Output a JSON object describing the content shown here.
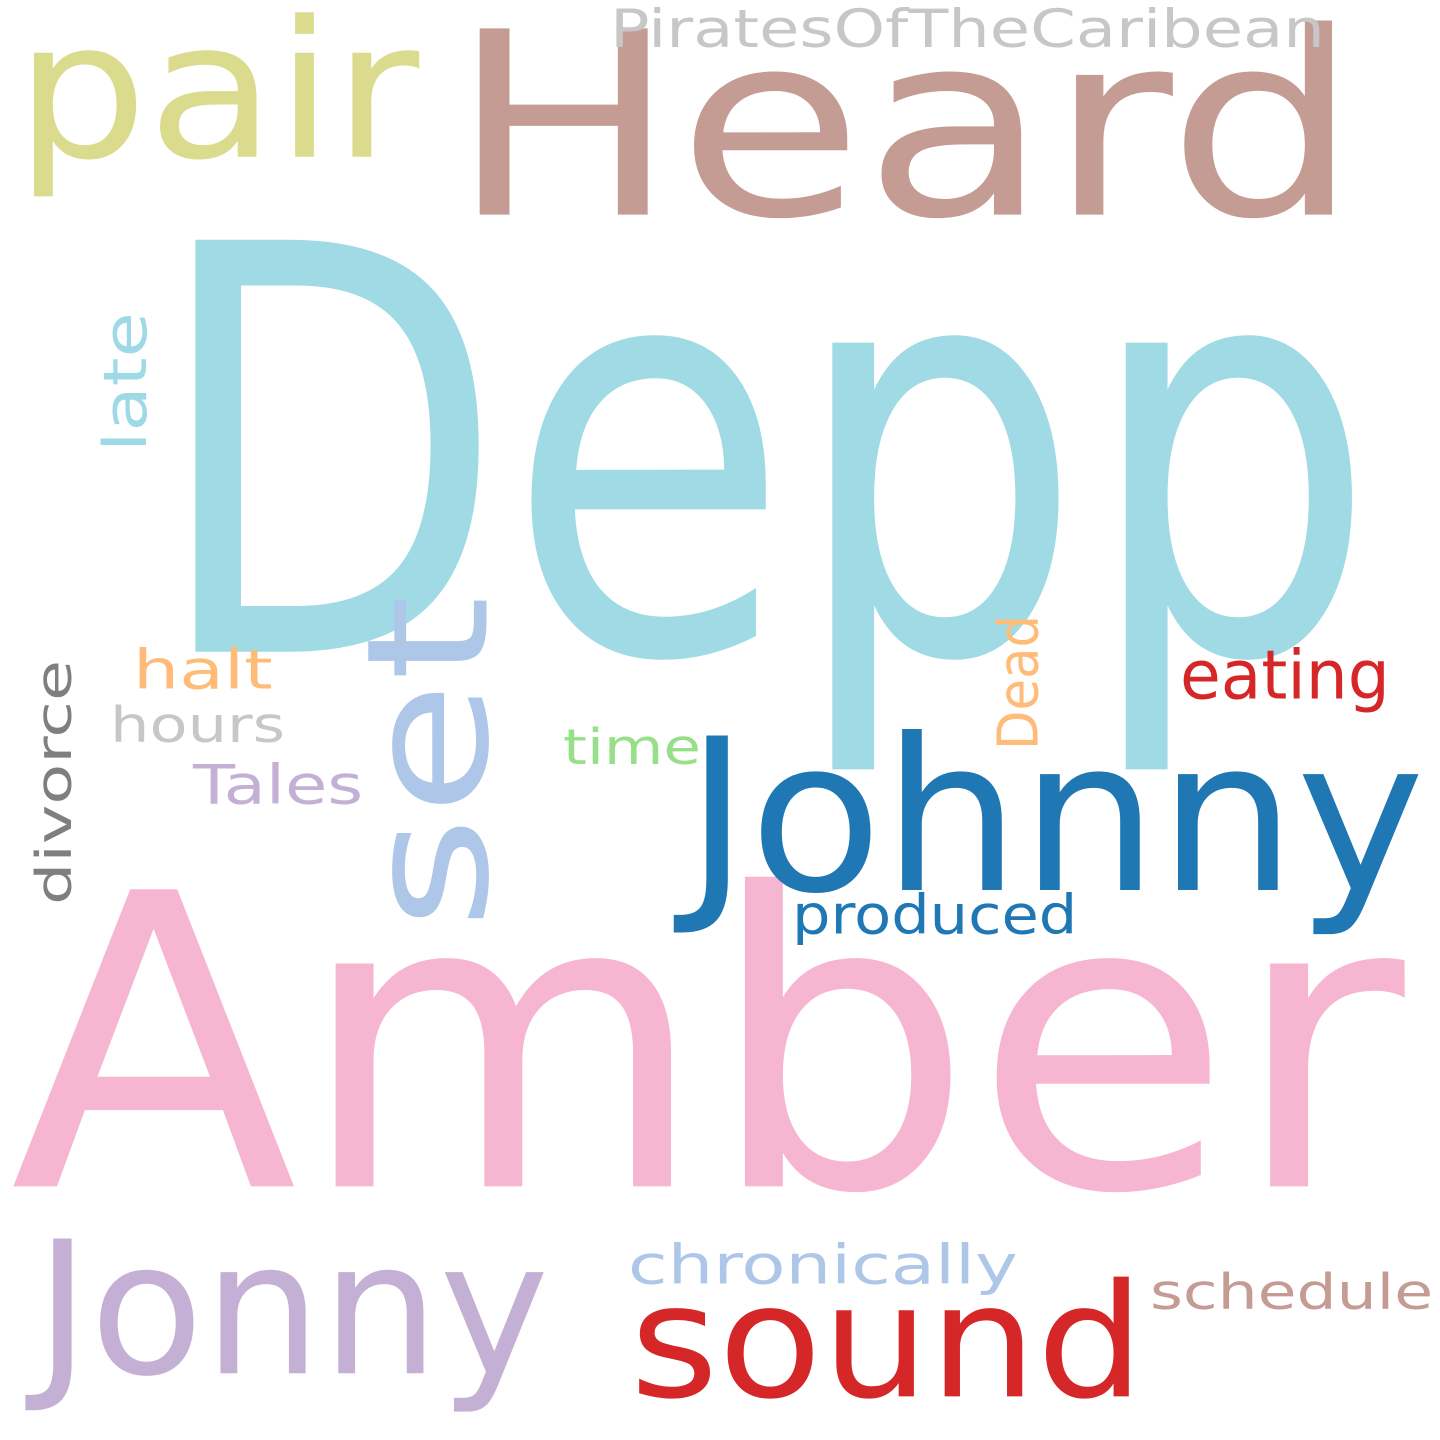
{
  "words": [
    {
      "text": "Depp",
      "color": "#9fdae5"
    },
    {
      "text": "Amber",
      "color": "#f6b6d2"
    },
    {
      "text": "Heard",
      "color": "#c49c94"
    },
    {
      "text": "Johnny",
      "color": "#1f77b4"
    },
    {
      "text": "Jonny",
      "color": "#c5b0d5"
    },
    {
      "text": "sound",
      "color": "#d62728"
    },
    {
      "text": "set",
      "color": "#aec7e8"
    },
    {
      "text": "pair",
      "color": "#dbdb8d"
    },
    {
      "text": "PiratesOfTheCaribean",
      "color": "#c7c7c7"
    },
    {
      "text": "chronically",
      "color": "#aec7e8"
    },
    {
      "text": "eating",
      "color": "#d62728"
    },
    {
      "text": "produced",
      "color": "#1f77b4"
    },
    {
      "text": "schedule",
      "color": "#c49c94"
    },
    {
      "text": "divorce",
      "color": "#7f7f7f"
    },
    {
      "text": "late",
      "color": "#9edae5"
    },
    {
      "text": "halt",
      "color": "#ffbb78"
    },
    {
      "text": "hours",
      "color": "#c7c7c7"
    },
    {
      "text": "Tales",
      "color": "#c5b0d5"
    },
    {
      "text": "time",
      "color": "#98df8a"
    },
    {
      "text": "Dead",
      "color": "#ffbb78"
    }
  ]
}
